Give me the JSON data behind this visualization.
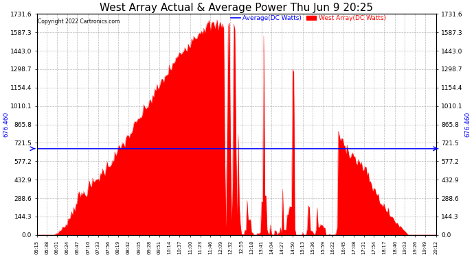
{
  "title": "West Array Actual & Average Power Thu Jun 9 20:25",
  "copyright": "Copyright 2022 Cartronics.com",
  "yticks": [
    0.0,
    144.3,
    288.6,
    432.9,
    577.2,
    721.5,
    865.8,
    1010.1,
    1154.4,
    1298.7,
    1443.0,
    1587.3,
    1731.6
  ],
  "ylim": [
    0.0,
    1731.6
  ],
  "average_line": 676.46,
  "average_label": "Average(DC Watts)",
  "west_array_label": "West Array(DC Watts)",
  "average_color": "blue",
  "west_array_color": "red",
  "background_color": "white",
  "grid_color": "#aaaaaa",
  "title_fontsize": 11,
  "xtick_labels": [
    "05:15",
    "05:38",
    "06:01",
    "06:24",
    "06:47",
    "07:10",
    "07:33",
    "07:56",
    "08:19",
    "08:42",
    "09:05",
    "09:28",
    "09:51",
    "10:14",
    "10:37",
    "11:00",
    "11:23",
    "11:46",
    "12:09",
    "12:32",
    "12:55",
    "13:18",
    "13:41",
    "14:04",
    "14:27",
    "14:50",
    "15:13",
    "15:36",
    "15:59",
    "16:22",
    "16:45",
    "17:08",
    "17:31",
    "17:54",
    "18:17",
    "18:40",
    "19:03",
    "19:26",
    "19:49",
    "20:12"
  ],
  "n_points": 360
}
